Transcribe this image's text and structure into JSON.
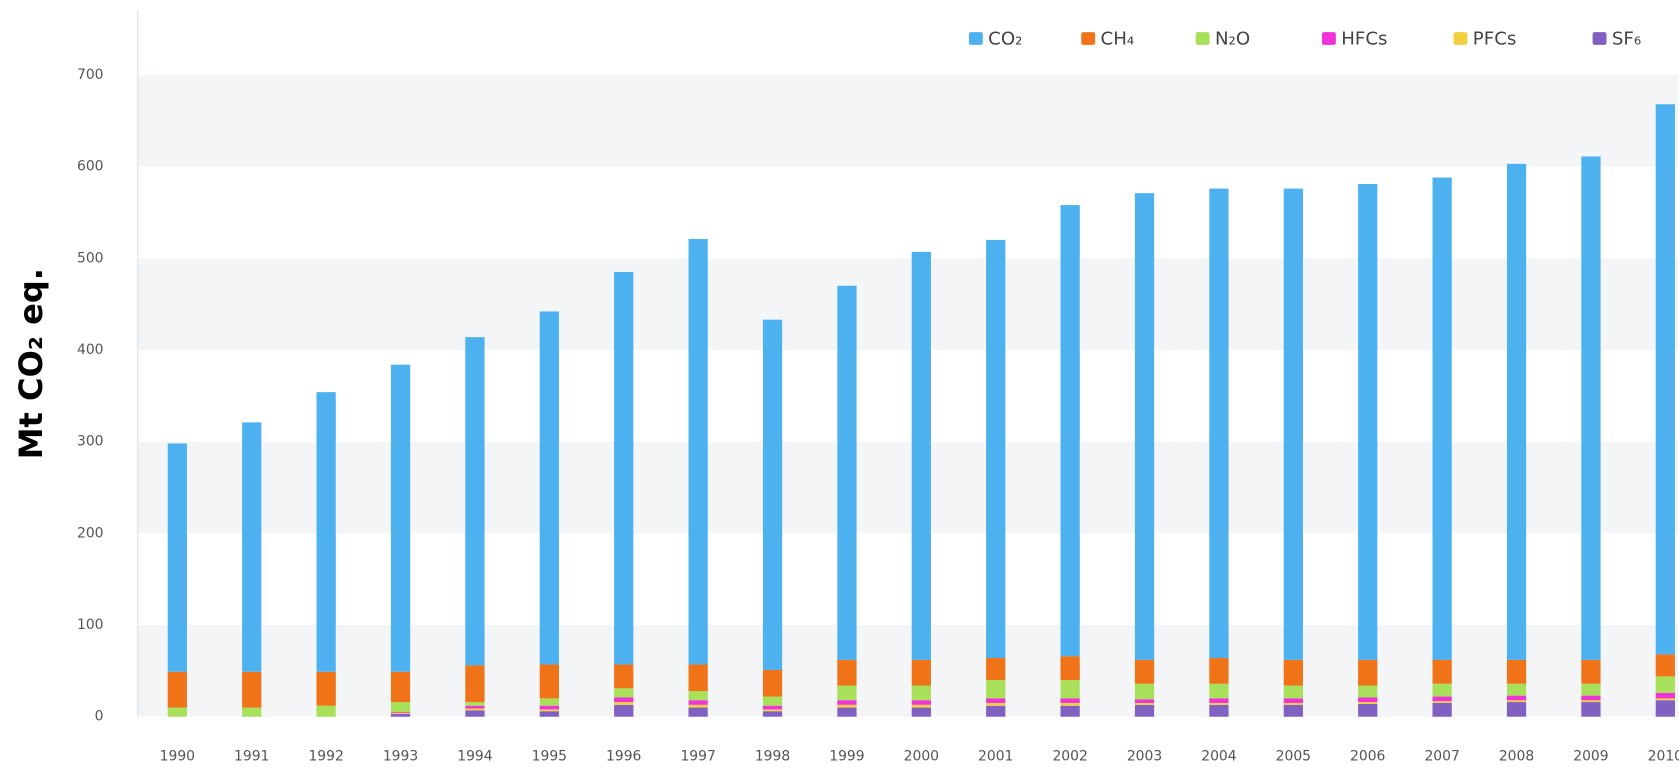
{
  "chart_data": {
    "type": "stacked_bar",
    "y_label": "Mt CO₂ eq.",
    "categories": [
      "1990",
      "1991",
      "1992",
      "1993",
      "1994",
      "1995",
      "1996",
      "1997",
      "1998",
      "1999",
      "2000",
      "2001",
      "2002",
      "2003",
      "2004",
      "2005",
      "2006",
      "2007",
      "2008",
      "2009",
      "2010"
    ],
    "series": [
      {
        "name": "CO₂",
        "color": "#4db1f0",
        "values": [
          249,
          272,
          305,
          335,
          358,
          385,
          428,
          464,
          382,
          408,
          445,
          456,
          492,
          509,
          512,
          514,
          519,
          526,
          541,
          549,
          600
        ]
      },
      {
        "name": "CH₄",
        "color": "#f07318",
        "values": [
          39,
          39,
          37,
          33,
          40,
          37,
          26,
          29,
          29,
          28,
          28,
          24,
          26,
          26,
          28,
          28,
          28,
          26,
          26,
          26,
          24
        ]
      },
      {
        "name": "N₂O",
        "color": "#a8e05a",
        "values": [
          10,
          10,
          12,
          11,
          4,
          8,
          10,
          10,
          10,
          16,
          16,
          20,
          20,
          17,
          16,
          14,
          13,
          14,
          13,
          13,
          18
        ]
      },
      {
        "name": "HFCs",
        "color": "#f032d8",
        "values": [
          0,
          0,
          0,
          1,
          3,
          4,
          5,
          5,
          4,
          5,
          5,
          5,
          5,
          4,
          5,
          5,
          5,
          5,
          5,
          5,
          6
        ]
      },
      {
        "name": "PFCs",
        "color": "#f0d040",
        "values": [
          0,
          0,
          0,
          1,
          2,
          2,
          3,
          3,
          2,
          3,
          3,
          3,
          3,
          2,
          2,
          2,
          2,
          2,
          2,
          2,
          2
        ]
      },
      {
        "name": "SF₆",
        "color": "#8060c0",
        "values": [
          0,
          0,
          0,
          3,
          7,
          6,
          13,
          10,
          6,
          10,
          10,
          12,
          12,
          13,
          13,
          13,
          14,
          15,
          16,
          16,
          18
        ]
      }
    ],
    "ylim": [
      0,
      700
    ],
    "yticks": [
      0,
      100,
      200,
      300,
      400,
      500,
      600,
      700
    ],
    "grid": true,
    "legend": "top-right"
  }
}
